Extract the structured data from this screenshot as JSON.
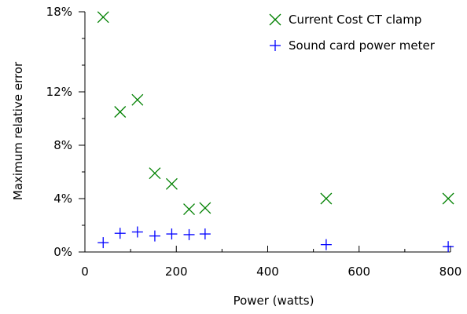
{
  "chart_data": {
    "type": "scatter",
    "xlabel": "Power (watts)",
    "ylabel": "Maximum relative error",
    "xlim": [
      0,
      800
    ],
    "ylim": [
      0,
      18
    ],
    "x_ticks": [
      0,
      200,
      400,
      600,
      800
    ],
    "x_minor_ticks": [
      100,
      300,
      500,
      700
    ],
    "y_ticks": [
      0,
      4,
      8,
      12,
      18
    ],
    "y_tick_labels": [
      "0%",
      "4%",
      "8%",
      "12%",
      "18%"
    ],
    "y_minor_ticks": [
      2,
      6,
      10,
      14,
      16
    ],
    "grid": false,
    "legend_position": "top-right",
    "series": [
      {
        "name": "Current Cost CT clamp",
        "marker": "x",
        "color": "#008000",
        "points": [
          [
            40,
            17.6
          ],
          [
            77,
            10.5
          ],
          [
            115,
            11.4
          ],
          [
            153,
            5.9
          ],
          [
            190,
            5.1
          ],
          [
            228,
            3.2
          ],
          [
            263,
            3.3
          ],
          [
            528,
            4.0
          ],
          [
            795,
            4.0
          ]
        ]
      },
      {
        "name": "Sound card power meter",
        "marker": "+",
        "color": "#0000ff",
        "points": [
          [
            40,
            0.7
          ],
          [
            77,
            1.4
          ],
          [
            115,
            1.5
          ],
          [
            153,
            1.2
          ],
          [
            190,
            1.35
          ],
          [
            228,
            1.3
          ],
          [
            263,
            1.35
          ],
          [
            528,
            0.55
          ],
          [
            795,
            0.4
          ]
        ]
      }
    ]
  }
}
